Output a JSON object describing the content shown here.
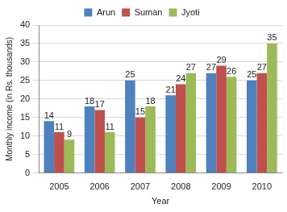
{
  "chart_data": {
    "type": "bar",
    "categories": [
      "2005",
      "2006",
      "2007",
      "2008",
      "2009",
      "2010"
    ],
    "series": [
      {
        "name": "Arun",
        "color": "#4f81bd",
        "values": [
          14,
          18,
          25,
          21,
          27,
          25
        ]
      },
      {
        "name": "Suman",
        "color": "#c0504d",
        "values": [
          11,
          17,
          15,
          24,
          29,
          27
        ]
      },
      {
        "name": "Jyoti",
        "color": "#9bbb59",
        "values": [
          9,
          11,
          18,
          27,
          26,
          35
        ]
      }
    ],
    "x_label": "Year",
    "y_label": "Monthly income (in Rs. thousands)",
    "ylim": [
      0,
      40
    ],
    "yticks": [
      0,
      5,
      10,
      15,
      20,
      25,
      30,
      35,
      40
    ],
    "grid": true,
    "legend": "top",
    "data_labels": true
  }
}
